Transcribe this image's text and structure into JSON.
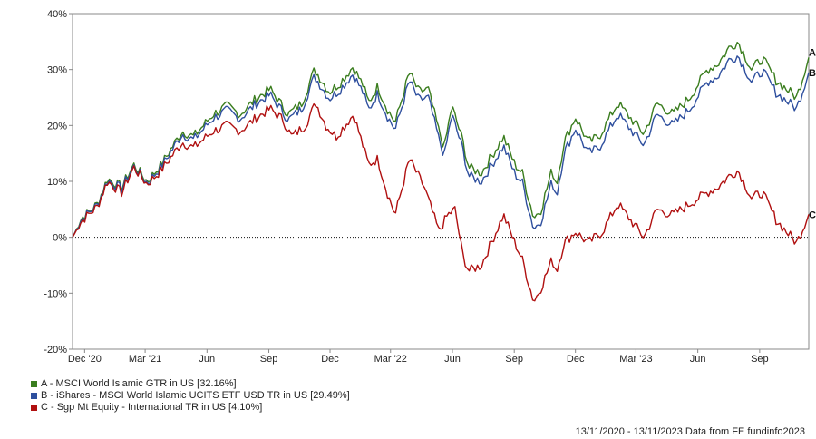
{
  "chart_data": {
    "type": "line",
    "title": "",
    "xlabel": "",
    "ylabel": "",
    "ylim": [
      -20,
      40
    ],
    "y_ticks": [
      -20,
      -10,
      0,
      10,
      20,
      30,
      40
    ],
    "y_tick_suffix": "%",
    "x_range": [
      "2020-11-13",
      "2023-11-13"
    ],
    "x_ticks": [
      {
        "date": "2020-12-01",
        "label": "Dec '20"
      },
      {
        "date": "2021-03-01",
        "label": "Mar '21"
      },
      {
        "date": "2021-06-01",
        "label": "Jun"
      },
      {
        "date": "2021-09-01",
        "label": "Sep"
      },
      {
        "date": "2021-12-01",
        "label": "Dec"
      },
      {
        "date": "2022-03-01",
        "label": "Mar '22"
      },
      {
        "date": "2022-06-01",
        "label": "Jun"
      },
      {
        "date": "2022-09-01",
        "label": "Sep"
      },
      {
        "date": "2022-12-01",
        "label": "Dec"
      },
      {
        "date": "2023-03-01",
        "label": "Mar '23"
      },
      {
        "date": "2023-06-01",
        "label": "Jun"
      },
      {
        "date": "2023-09-01",
        "label": "Sep"
      }
    ],
    "zero_line": true,
    "grid": false,
    "legend_position": "bottom-left",
    "series": [
      {
        "id": "A",
        "name": "A - MSCI World Islamic GTR in US [32.16%]",
        "end_label": "A",
        "color": "#3a7d1e",
        "points": [
          [
            "2020-11-13",
            0
          ],
          [
            "2020-11-27",
            3.5
          ],
          [
            "2020-12-20",
            6
          ],
          [
            "2021-01-04",
            10.5
          ],
          [
            "2021-01-25",
            9
          ],
          [
            "2021-02-12",
            13
          ],
          [
            "2021-03-04",
            10
          ],
          [
            "2021-03-25",
            13
          ],
          [
            "2021-04-25",
            19
          ],
          [
            "2021-05-12",
            18
          ],
          [
            "2021-06-10",
            22
          ],
          [
            "2021-07-01",
            23.5
          ],
          [
            "2021-07-20",
            22
          ],
          [
            "2021-08-15",
            25
          ],
          [
            "2021-09-03",
            26.5
          ],
          [
            "2021-09-30",
            22
          ],
          [
            "2021-10-20",
            24
          ],
          [
            "2021-11-08",
            30
          ],
          [
            "2021-11-30",
            26
          ],
          [
            "2021-12-15",
            27.5
          ],
          [
            "2022-01-04",
            30.5
          ],
          [
            "2022-01-20",
            27
          ],
          [
            "2022-01-27",
            24
          ],
          [
            "2022-02-10",
            27
          ],
          [
            "2022-02-24",
            23
          ],
          [
            "2022-03-08",
            20.5
          ],
          [
            "2022-03-29",
            29.5
          ],
          [
            "2022-04-12",
            26
          ],
          [
            "2022-04-26",
            26.5
          ],
          [
            "2022-05-12",
            19
          ],
          [
            "2022-05-20",
            16
          ],
          [
            "2022-05-31",
            23.5
          ],
          [
            "2022-06-16",
            17.5
          ],
          [
            "2022-06-25",
            12.5
          ],
          [
            "2022-07-14",
            11.5
          ],
          [
            "2022-08-16",
            18
          ],
          [
            "2022-09-02",
            13
          ],
          [
            "2022-09-13",
            11.5
          ],
          [
            "2022-09-30",
            3.5
          ],
          [
            "2022-10-11",
            5
          ],
          [
            "2022-10-27",
            12
          ],
          [
            "2022-11-03",
            9.5
          ],
          [
            "2022-11-14",
            17
          ],
          [
            "2022-12-01",
            21.5
          ],
          [
            "2022-12-20",
            17
          ],
          [
            "2023-01-05",
            18
          ],
          [
            "2023-02-02",
            24
          ],
          [
            "2023-03-13",
            18.5
          ],
          [
            "2023-04-01",
            24
          ],
          [
            "2023-04-25",
            22
          ],
          [
            "2023-05-20",
            25
          ],
          [
            "2023-06-15",
            30
          ],
          [
            "2023-07-01",
            31
          ],
          [
            "2023-07-18",
            34
          ],
          [
            "2023-07-31",
            35
          ],
          [
            "2023-08-20",
            30
          ],
          [
            "2023-09-05",
            32
          ],
          [
            "2023-09-26",
            28
          ],
          [
            "2023-10-26",
            25
          ],
          [
            "2023-11-13",
            32.16
          ]
        ]
      },
      {
        "id": "B",
        "name": "B - iShares - MSCI World Islamic UCITS ETF USD TR in US [29.49%]",
        "end_label": "B",
        "color": "#2e4f9e",
        "points": [
          [
            "2020-11-13",
            0
          ],
          [
            "2020-11-27",
            3.3
          ],
          [
            "2020-12-20",
            5.8
          ],
          [
            "2021-01-04",
            10.2
          ],
          [
            "2021-01-25",
            8.7
          ],
          [
            "2021-02-12",
            12.7
          ],
          [
            "2021-03-04",
            9.7
          ],
          [
            "2021-03-25",
            12.6
          ],
          [
            "2021-04-25",
            18.5
          ],
          [
            "2021-05-12",
            17.4
          ],
          [
            "2021-06-10",
            21.3
          ],
          [
            "2021-07-01",
            22.7
          ],
          [
            "2021-07-20",
            21.2
          ],
          [
            "2021-08-15",
            24.1
          ],
          [
            "2021-09-03",
            25.5
          ],
          [
            "2021-09-30",
            21
          ],
          [
            "2021-10-20",
            23
          ],
          [
            "2021-11-08",
            28.8
          ],
          [
            "2021-11-30",
            24.8
          ],
          [
            "2021-12-15",
            26.3
          ],
          [
            "2022-01-04",
            29.2
          ],
          [
            "2022-01-20",
            25.7
          ],
          [
            "2022-01-27",
            22.7
          ],
          [
            "2022-02-10",
            25.7
          ],
          [
            "2022-02-24",
            21.7
          ],
          [
            "2022-03-08",
            19.2
          ],
          [
            "2022-03-29",
            28
          ],
          [
            "2022-04-12",
            24.5
          ],
          [
            "2022-04-26",
            25
          ],
          [
            "2022-05-12",
            17.5
          ],
          [
            "2022-05-20",
            14.5
          ],
          [
            "2022-05-31",
            22
          ],
          [
            "2022-06-16",
            16
          ],
          [
            "2022-06-25",
            11
          ],
          [
            "2022-07-14",
            10
          ],
          [
            "2022-08-16",
            16.3
          ],
          [
            "2022-09-02",
            11.3
          ],
          [
            "2022-09-13",
            9.8
          ],
          [
            "2022-09-30",
            1.5
          ],
          [
            "2022-10-11",
            3
          ],
          [
            "2022-10-27",
            10
          ],
          [
            "2022-11-03",
            7.5
          ],
          [
            "2022-11-14",
            15
          ],
          [
            "2022-12-01",
            19.5
          ],
          [
            "2022-12-20",
            15
          ],
          [
            "2023-01-05",
            16
          ],
          [
            "2023-02-02",
            22
          ],
          [
            "2023-03-13",
            16.5
          ],
          [
            "2023-04-01",
            22
          ],
          [
            "2023-04-25",
            20
          ],
          [
            "2023-05-20",
            23
          ],
          [
            "2023-06-15",
            27.8
          ],
          [
            "2023-07-01",
            28.8
          ],
          [
            "2023-07-18",
            31.8
          ],
          [
            "2023-07-31",
            32.5
          ],
          [
            "2023-08-20",
            27.8
          ],
          [
            "2023-09-05",
            29.8
          ],
          [
            "2023-09-26",
            25.8
          ],
          [
            "2023-10-26",
            23
          ],
          [
            "2023-11-13",
            29.49
          ]
        ]
      },
      {
        "id": "C",
        "name": "C - Sgp Mt Equity - International TR in US [4.10%]",
        "end_label": "C",
        "color": "#b01010",
        "points": [
          [
            "2020-11-13",
            0
          ],
          [
            "2020-11-27",
            3
          ],
          [
            "2020-12-20",
            5.5
          ],
          [
            "2021-01-04",
            10
          ],
          [
            "2021-01-25",
            8
          ],
          [
            "2021-02-12",
            12.5
          ],
          [
            "2021-03-04",
            9.5
          ],
          [
            "2021-03-25",
            12
          ],
          [
            "2021-04-25",
            17
          ],
          [
            "2021-05-12",
            16
          ],
          [
            "2021-06-10",
            19
          ],
          [
            "2021-07-01",
            20
          ],
          [
            "2021-07-20",
            19
          ],
          [
            "2021-08-15",
            21.5
          ],
          [
            "2021-09-03",
            23
          ],
          [
            "2021-09-22",
            21
          ],
          [
            "2021-10-05",
            18
          ],
          [
            "2021-10-25",
            20
          ],
          [
            "2021-11-10",
            24
          ],
          [
            "2021-11-25",
            20
          ],
          [
            "2021-12-10",
            18
          ],
          [
            "2022-01-05",
            22
          ],
          [
            "2022-01-20",
            16
          ],
          [
            "2022-01-27",
            13
          ],
          [
            "2022-02-10",
            14
          ],
          [
            "2022-02-24",
            8
          ],
          [
            "2022-03-08",
            4
          ],
          [
            "2022-03-29",
            14
          ],
          [
            "2022-04-20",
            9
          ],
          [
            "2022-05-12",
            1
          ],
          [
            "2022-05-25",
            4
          ],
          [
            "2022-06-05",
            5
          ],
          [
            "2022-06-16",
            -3
          ],
          [
            "2022-06-25",
            -6
          ],
          [
            "2022-07-14",
            -5
          ],
          [
            "2022-08-16",
            4
          ],
          [
            "2022-09-02",
            -1
          ],
          [
            "2022-09-13",
            -4
          ],
          [
            "2022-09-30",
            -11.5
          ],
          [
            "2022-10-11",
            -9
          ],
          [
            "2022-10-27",
            -4
          ],
          [
            "2022-11-03",
            -6
          ],
          [
            "2022-11-14",
            -1
          ],
          [
            "2022-12-01",
            1
          ],
          [
            "2022-12-20",
            -1
          ],
          [
            "2023-01-10",
            1
          ],
          [
            "2023-02-02",
            6
          ],
          [
            "2023-03-13",
            0
          ],
          [
            "2023-04-01",
            5
          ],
          [
            "2023-04-25",
            4
          ],
          [
            "2023-05-20",
            6
          ],
          [
            "2023-06-15",
            8
          ],
          [
            "2023-07-01",
            9
          ],
          [
            "2023-07-18",
            11
          ],
          [
            "2023-07-31",
            12
          ],
          [
            "2023-08-20",
            7
          ],
          [
            "2023-09-05",
            8
          ],
          [
            "2023-09-26",
            3
          ],
          [
            "2023-10-26",
            -1
          ],
          [
            "2023-11-13",
            4.1
          ]
        ]
      }
    ]
  },
  "footer": {
    "text": "13/11/2020 - 13/11/2023 Data from FE fundinfo2023"
  }
}
